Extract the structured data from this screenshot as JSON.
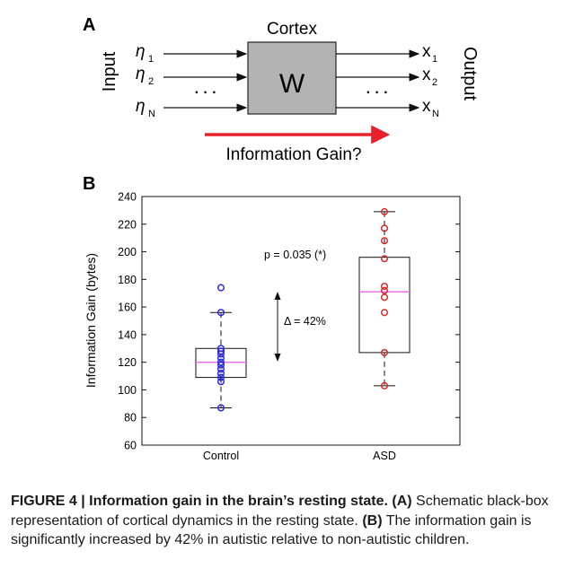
{
  "panel_a": {
    "label": "A",
    "input_label": "Input",
    "output_label": "Output",
    "box_title": "Cortex",
    "box_letter": "W",
    "inputs": [
      {
        "sym": "η",
        "sub": "1"
      },
      {
        "sym": "η",
        "sub": "2"
      },
      {
        "sym": "η",
        "sub": "N"
      }
    ],
    "outputs": [
      {
        "sym": "x",
        "sub": "1"
      },
      {
        "sym": "x",
        "sub": "2"
      },
      {
        "sym": "x",
        "sub": "N"
      }
    ],
    "ellipsis": "· · ·",
    "gain_label": "Information Gain?",
    "colors": {
      "box_fill": "#b3b3b3",
      "gain_arrow": "#e8202a"
    }
  },
  "panel_b": {
    "label": "B",
    "p_value": "p = 0.035 (*)",
    "delta": "Δ = 42%"
  },
  "chart_data": {
    "type": "box",
    "title": "",
    "xlabel": "",
    "ylabel": "Information Gain (bytes)",
    "ylim": [
      60,
      240
    ],
    "yticks": [
      60,
      80,
      100,
      120,
      140,
      160,
      180,
      200,
      220,
      240
    ],
    "categories": [
      "Control",
      "ASD"
    ],
    "groups": [
      {
        "name": "Control",
        "color": "#2b2bd9",
        "q1": 109,
        "median": 120,
        "q3": 130,
        "whisker_low": 87,
        "whisker_high": 156,
        "points": [
          87,
          106,
          109,
          112,
          115,
          118,
          120,
          123,
          126,
          128,
          130,
          156,
          174
        ]
      },
      {
        "name": "ASD",
        "color": "#d92b2b",
        "q1": 127,
        "median": 171,
        "q3": 196,
        "whisker_low": 103,
        "whisker_high": 229,
        "points": [
          103,
          127,
          156,
          167,
          172,
          175,
          195,
          208,
          217,
          229
        ]
      }
    ],
    "median_color": "#ee66ee",
    "grid": false
  },
  "caption": {
    "bold": "FIGURE 4 | Information gain in the brain’s resting state. (A)",
    "text1": " Schematic black-box representation of cortical dynamics in the resting state. ",
    "bold2": "(B)",
    "text2": " The information gain is significantly increased by 42% in autistic relative to non-autistic children."
  }
}
